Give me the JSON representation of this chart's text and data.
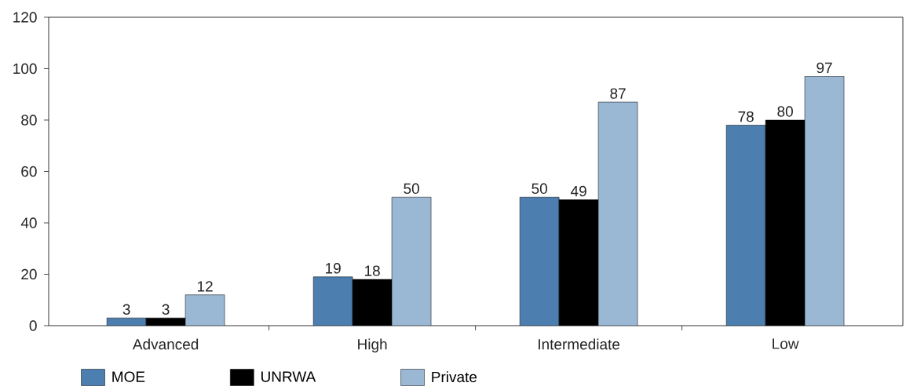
{
  "chart_data": {
    "type": "bar",
    "categories": [
      "Advanced",
      "High",
      "Intermediate",
      "Low"
    ],
    "series": [
      {
        "name": "MOE",
        "color": "#4c7eb0",
        "values": [
          3,
          19,
          50,
          78
        ]
      },
      {
        "name": "UNRWA",
        "color": "#000000",
        "values": [
          3,
          18,
          49,
          80
        ]
      },
      {
        "name": "Private",
        "color": "#9ab7d4",
        "values": [
          12,
          50,
          87,
          97
        ]
      }
    ],
    "ylim": [
      0,
      120
    ],
    "yticks": [
      0,
      20,
      40,
      60,
      80,
      100,
      120
    ],
    "data_labels": true,
    "legend": "bottom"
  }
}
